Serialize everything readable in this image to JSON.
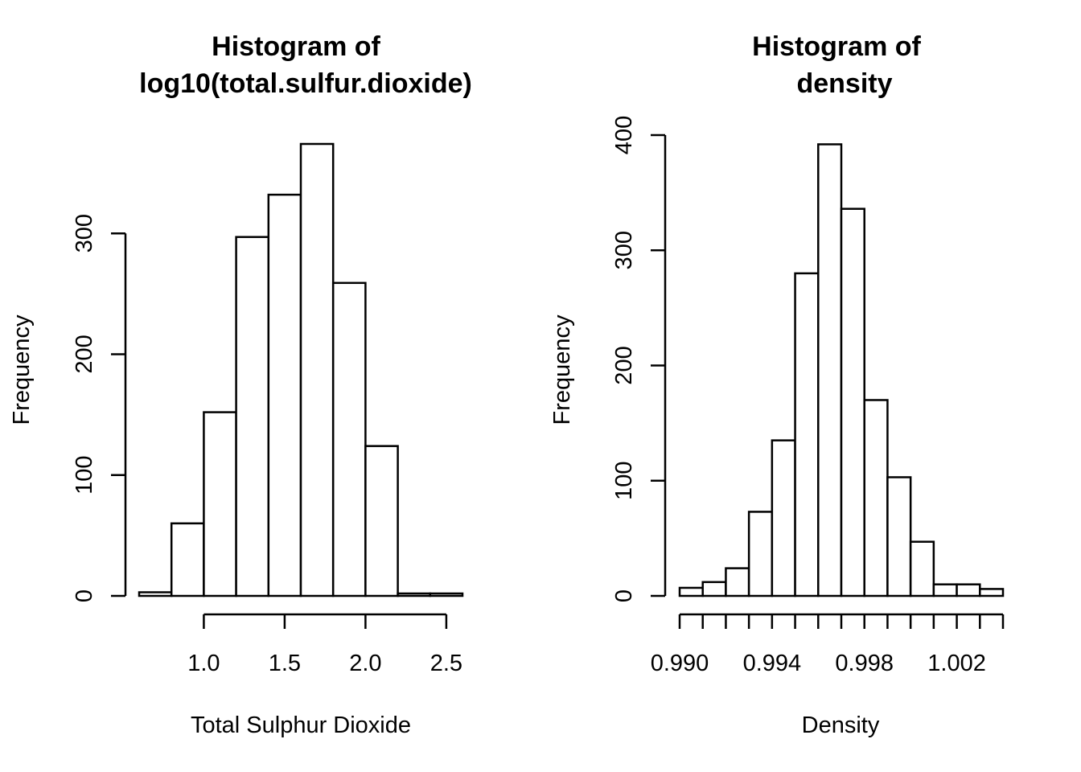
{
  "chart_data": [
    {
      "type": "bar",
      "title_lines": [
        "Histogram of",
        "log10(total.sulfur.dioxide)"
      ],
      "xlabel": "Total Sulphur Dioxide",
      "ylabel": "Frequency",
      "bin_edges": [
        0.6,
        0.8,
        1.0,
        1.2,
        1.4,
        1.6,
        1.8,
        2.0,
        2.2,
        2.4,
        2.6
      ],
      "values": [
        3,
        60,
        152,
        297,
        332,
        374,
        259,
        124,
        2,
        2
      ],
      "xlim": [
        0.6,
        2.6
      ],
      "ylim": [
        0,
        374
      ],
      "x_ticks": [
        1.0,
        1.5,
        2.0,
        2.5
      ],
      "x_tick_labels": [
        "1.0",
        "1.5",
        "2.0",
        "2.5"
      ],
      "y_ticks": [
        0,
        100,
        200,
        300
      ],
      "y_tick_labels": [
        "0",
        "100",
        "200",
        "300"
      ]
    },
    {
      "type": "bar",
      "title_lines": [
        "Histogram of",
        "density"
      ],
      "xlabel": "Density",
      "ylabel": "Frequency",
      "bin_edges": [
        0.99,
        0.991,
        0.992,
        0.993,
        0.994,
        0.995,
        0.996,
        0.997,
        0.998,
        0.999,
        1.0,
        1.001,
        1.002,
        1.003,
        1.004
      ],
      "values": [
        7,
        12,
        24,
        73,
        135,
        280,
        392,
        336,
        170,
        103,
        47,
        10,
        10,
        6
      ],
      "xlim": [
        0.99,
        1.004
      ],
      "ylim": [
        0,
        400
      ],
      "x_ticks": [
        0.99,
        0.991,
        0.992,
        0.993,
        0.994,
        0.995,
        0.996,
        0.997,
        0.998,
        0.999,
        1.0,
        1.001,
        1.002,
        1.003,
        1.004
      ],
      "x_tick_labels": [
        "0.990",
        "",
        "",
        "",
        "0.994",
        "",
        "",
        "",
        "0.998",
        "",
        "",
        "",
        "1.002",
        "",
        ""
      ],
      "y_ticks": [
        0,
        100,
        200,
        300,
        400
      ],
      "y_tick_labels": [
        "0",
        "100",
        "200",
        "300",
        "400"
      ]
    }
  ]
}
